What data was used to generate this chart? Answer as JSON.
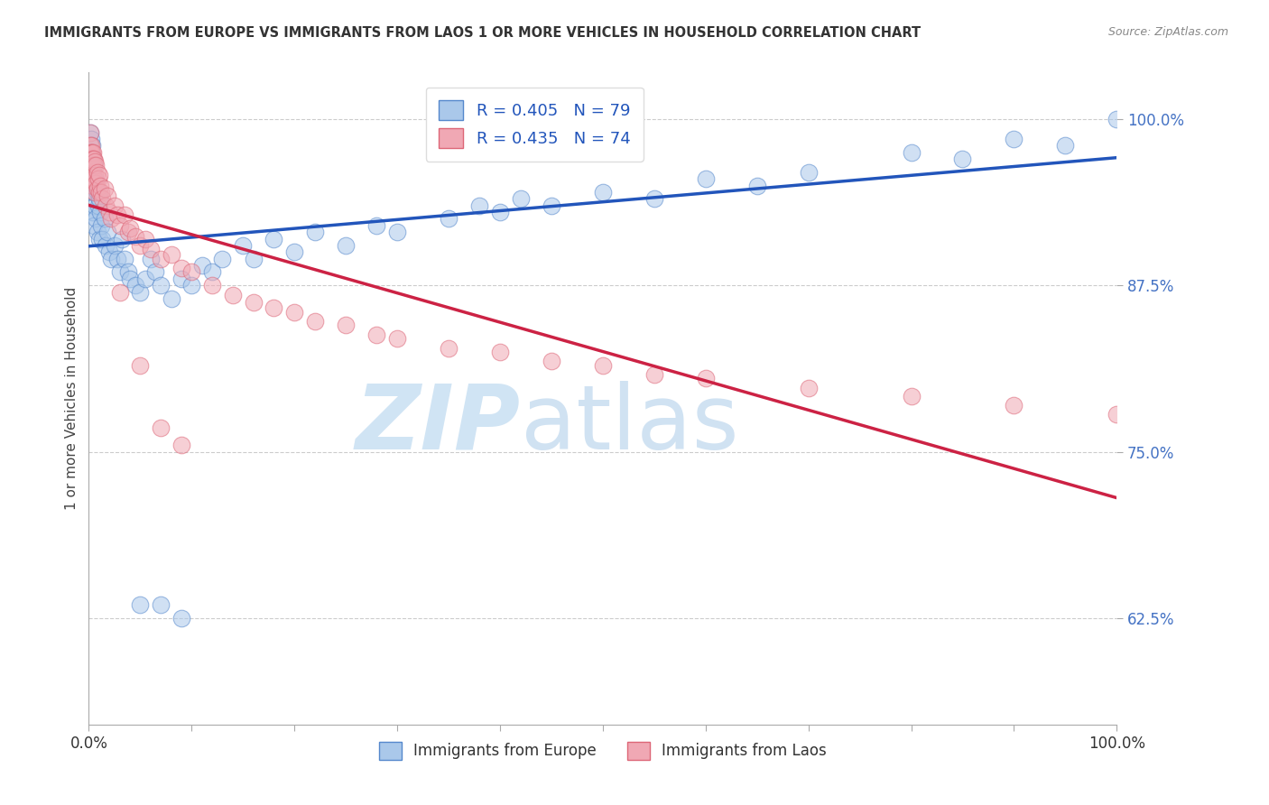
{
  "title": "IMMIGRANTS FROM EUROPE VS IMMIGRANTS FROM LAOS 1 OR MORE VEHICLES IN HOUSEHOLD CORRELATION CHART",
  "source": "Source: ZipAtlas.com",
  "ylabel": "1 or more Vehicles in Household",
  "xlim": [
    0,
    1
  ],
  "ylim": [
    0.545,
    1.035
  ],
  "yticks": [
    0.625,
    0.75,
    0.875,
    1.0
  ],
  "ytick_labels": [
    "62.5%",
    "75.0%",
    "87.5%",
    "100.0%"
  ],
  "xtick_positions": [
    0.0,
    0.1,
    0.2,
    0.3,
    0.4,
    0.5,
    0.6,
    0.7,
    0.8,
    0.9,
    1.0
  ],
  "xtick_labels_show": [
    "0.0%",
    "",
    "",
    "",
    "",
    "",
    "",
    "",
    "",
    "",
    "100.0%"
  ],
  "europe_color": "#aac8ea",
  "laos_color": "#f0a8b4",
  "europe_edge_color": "#5588cc",
  "laos_edge_color": "#dd6677",
  "europe_line_color": "#2255bb",
  "laos_line_color": "#cc2244",
  "R_europe": 0.405,
  "N_europe": 79,
  "R_laos": 0.435,
  "N_laos": 74,
  "watermark_zip": "ZIP",
  "watermark_atlas": "atlas",
  "watermark_color": "#d0e4f4",
  "europe_x": [
    0.001,
    0.001,
    0.001,
    0.002,
    0.002,
    0.002,
    0.002,
    0.003,
    0.003,
    0.003,
    0.003,
    0.004,
    0.004,
    0.004,
    0.005,
    0.005,
    0.005,
    0.006,
    0.006,
    0.007,
    0.007,
    0.008,
    0.008,
    0.009,
    0.01,
    0.01,
    0.011,
    0.012,
    0.013,
    0.015,
    0.016,
    0.018,
    0.02,
    0.022,
    0.025,
    0.028,
    0.03,
    0.032,
    0.035,
    0.038,
    0.04,
    0.045,
    0.05,
    0.055,
    0.06,
    0.065,
    0.07,
    0.08,
    0.09,
    0.1,
    0.11,
    0.12,
    0.13,
    0.15,
    0.16,
    0.18,
    0.2,
    0.22,
    0.25,
    0.28,
    0.3,
    0.35,
    0.38,
    0.4,
    0.42,
    0.45,
    0.5,
    0.55,
    0.6,
    0.65,
    0.7,
    0.8,
    0.85,
    0.9,
    0.95,
    1.0,
    0.05,
    0.07,
    0.09
  ],
  "europe_y": [
    0.99,
    0.97,
    0.96,
    0.985,
    0.975,
    0.965,
    0.95,
    0.98,
    0.96,
    0.945,
    0.93,
    0.97,
    0.95,
    0.93,
    0.965,
    0.945,
    0.92,
    0.955,
    0.935,
    0.95,
    0.925,
    0.945,
    0.915,
    0.935,
    0.94,
    0.91,
    0.93,
    0.92,
    0.91,
    0.925,
    0.905,
    0.915,
    0.9,
    0.895,
    0.905,
    0.895,
    0.885,
    0.91,
    0.895,
    0.885,
    0.88,
    0.875,
    0.87,
    0.88,
    0.895,
    0.885,
    0.875,
    0.865,
    0.88,
    0.875,
    0.89,
    0.885,
    0.895,
    0.905,
    0.895,
    0.91,
    0.9,
    0.915,
    0.905,
    0.92,
    0.915,
    0.925,
    0.935,
    0.93,
    0.94,
    0.935,
    0.945,
    0.94,
    0.955,
    0.95,
    0.96,
    0.975,
    0.97,
    0.985,
    0.98,
    1.0,
    0.635,
    0.635,
    0.625
  ],
  "laos_x": [
    0.001,
    0.001,
    0.001,
    0.001,
    0.002,
    0.002,
    0.002,
    0.002,
    0.003,
    0.003,
    0.003,
    0.003,
    0.004,
    0.004,
    0.004,
    0.004,
    0.005,
    0.005,
    0.005,
    0.006,
    0.006,
    0.006,
    0.007,
    0.007,
    0.008,
    0.008,
    0.009,
    0.01,
    0.01,
    0.011,
    0.012,
    0.013,
    0.015,
    0.016,
    0.018,
    0.02,
    0.022,
    0.025,
    0.028,
    0.03,
    0.035,
    0.038,
    0.04,
    0.045,
    0.05,
    0.055,
    0.06,
    0.07,
    0.08,
    0.09,
    0.1,
    0.12,
    0.14,
    0.16,
    0.18,
    0.2,
    0.22,
    0.25,
    0.28,
    0.3,
    0.35,
    0.4,
    0.45,
    0.5,
    0.55,
    0.6,
    0.7,
    0.8,
    0.9,
    1.0,
    0.03,
    0.05,
    0.07,
    0.09
  ],
  "laos_y": [
    0.99,
    0.98,
    0.975,
    0.965,
    0.98,
    0.975,
    0.97,
    0.955,
    0.975,
    0.97,
    0.965,
    0.955,
    0.975,
    0.97,
    0.96,
    0.95,
    0.97,
    0.965,
    0.955,
    0.968,
    0.958,
    0.945,
    0.965,
    0.952,
    0.96,
    0.948,
    0.955,
    0.958,
    0.945,
    0.95,
    0.945,
    0.94,
    0.948,
    0.935,
    0.942,
    0.93,
    0.925,
    0.935,
    0.928,
    0.92,
    0.928,
    0.915,
    0.918,
    0.912,
    0.905,
    0.91,
    0.902,
    0.895,
    0.898,
    0.888,
    0.885,
    0.875,
    0.868,
    0.862,
    0.858,
    0.855,
    0.848,
    0.845,
    0.838,
    0.835,
    0.828,
    0.825,
    0.818,
    0.815,
    0.808,
    0.805,
    0.798,
    0.792,
    0.785,
    0.778,
    0.87,
    0.815,
    0.768,
    0.755
  ]
}
